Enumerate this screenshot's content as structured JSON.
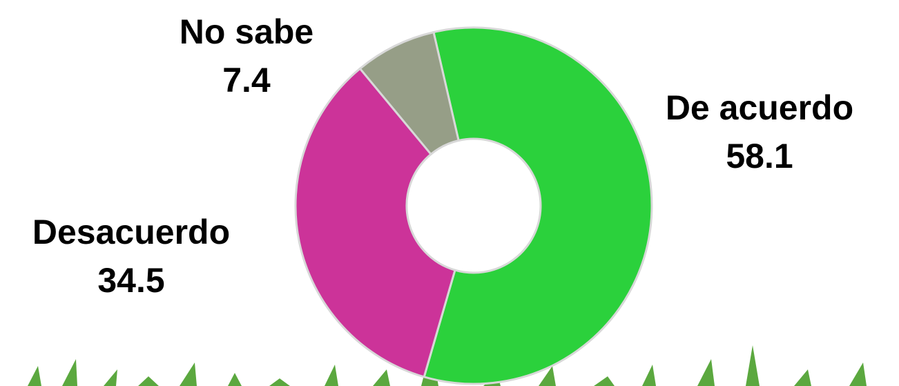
{
  "chart_data": {
    "type": "donut",
    "categories": [
      "De acuerdo",
      "Desacuerdo",
      "No sabe"
    ],
    "values": [
      58.1,
      34.5,
      7.4
    ],
    "colors": [
      "#2bd13c",
      "#cc3399",
      "#969e87"
    ]
  }
}
